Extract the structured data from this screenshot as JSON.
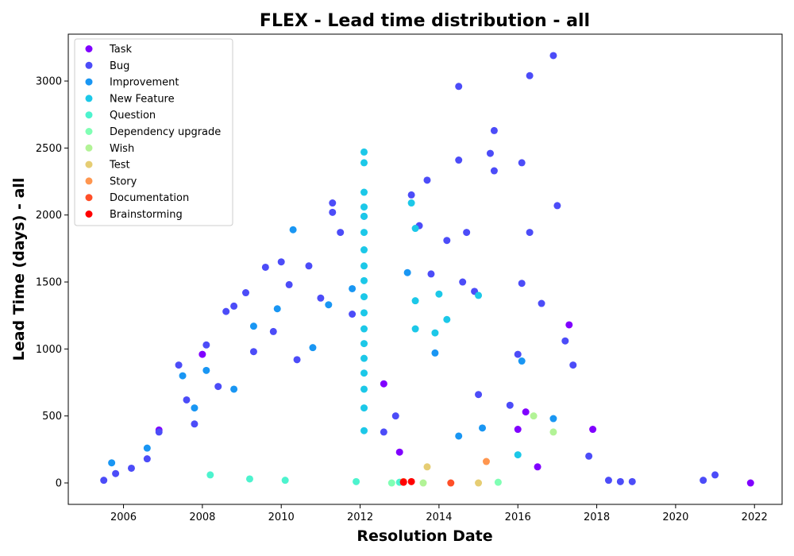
{
  "chart_data": {
    "type": "scatter",
    "title": "FLEX - Lead time distribution - all",
    "xlabel": "Resolution Date",
    "ylabel": "Lead Time (days) - all",
    "xlim": [
      2004.6,
      2022.7
    ],
    "ylim": [
      -160,
      3350
    ],
    "x_ticks": [
      2006,
      2008,
      2010,
      2012,
      2014,
      2016,
      2018,
      2020,
      2022
    ],
    "y_ticks": [
      0,
      500,
      1000,
      1500,
      2000,
      2500,
      3000
    ],
    "legend_position": "upper-left",
    "grid": false,
    "series": [
      {
        "name": "Task",
        "color": "#8000ff",
        "points": [
          [
            2006.9,
            395
          ],
          [
            2008.0,
            960
          ],
          [
            2012.6,
            740
          ],
          [
            2013.0,
            230
          ],
          [
            2016.0,
            400
          ],
          [
            2016.2,
            530
          ],
          [
            2016.5,
            120
          ],
          [
            2017.3,
            1180
          ],
          [
            2017.9,
            400
          ],
          [
            2021.9,
            0
          ]
        ]
      },
      {
        "name": "Bug",
        "color": "#4c4cf8",
        "points": [
          [
            2005.5,
            20
          ],
          [
            2005.8,
            70
          ],
          [
            2006.2,
            110
          ],
          [
            2006.6,
            180
          ],
          [
            2006.9,
            380
          ],
          [
            2007.4,
            880
          ],
          [
            2007.6,
            620
          ],
          [
            2007.8,
            440
          ],
          [
            2008.1,
            1030
          ],
          [
            2008.4,
            720
          ],
          [
            2008.6,
            1280
          ],
          [
            2008.8,
            1320
          ],
          [
            2009.1,
            1420
          ],
          [
            2009.3,
            980
          ],
          [
            2009.6,
            1610
          ],
          [
            2009.8,
            1130
          ],
          [
            2010.0,
            1650
          ],
          [
            2010.2,
            1480
          ],
          [
            2010.4,
            920
          ],
          [
            2010.7,
            1620
          ],
          [
            2011.0,
            1380
          ],
          [
            2011.3,
            2090
          ],
          [
            2011.3,
            2020
          ],
          [
            2011.5,
            1870
          ],
          [
            2011.8,
            1260
          ],
          [
            2012.1,
            1990
          ],
          [
            2012.6,
            380
          ],
          [
            2012.9,
            500
          ],
          [
            2013.3,
            2150
          ],
          [
            2013.5,
            1920
          ],
          [
            2013.7,
            2260
          ],
          [
            2013.8,
            1560
          ],
          [
            2014.2,
            1810
          ],
          [
            2014.5,
            2960
          ],
          [
            2014.5,
            2410
          ],
          [
            2014.6,
            1500
          ],
          [
            2014.7,
            1870
          ],
          [
            2014.9,
            1430
          ],
          [
            2015.0,
            660
          ],
          [
            2015.3,
            2460
          ],
          [
            2015.4,
            2630
          ],
          [
            2015.4,
            2330
          ],
          [
            2015.8,
            580
          ],
          [
            2016.0,
            960
          ],
          [
            2016.1,
            2390
          ],
          [
            2016.1,
            1490
          ],
          [
            2016.3,
            3040
          ],
          [
            2016.3,
            1870
          ],
          [
            2016.6,
            1340
          ],
          [
            2016.9,
            3190
          ],
          [
            2017.0,
            2070
          ],
          [
            2017.2,
            1060
          ],
          [
            2017.4,
            880
          ],
          [
            2017.8,
            200
          ],
          [
            2018.3,
            20
          ],
          [
            2018.6,
            10
          ],
          [
            2018.9,
            10
          ],
          [
            2020.7,
            20
          ],
          [
            2021.0,
            60
          ]
        ]
      },
      {
        "name": "Improvement",
        "color": "#1996f3",
        "points": [
          [
            2005.7,
            150
          ],
          [
            2006.6,
            260
          ],
          [
            2007.5,
            800
          ],
          [
            2007.8,
            560
          ],
          [
            2008.1,
            840
          ],
          [
            2008.8,
            700
          ],
          [
            2009.3,
            1170
          ],
          [
            2009.9,
            1300
          ],
          [
            2010.3,
            1890
          ],
          [
            2010.8,
            1010
          ],
          [
            2011.2,
            1330
          ],
          [
            2011.8,
            1450
          ],
          [
            2013.2,
            1570
          ],
          [
            2013.9,
            970
          ],
          [
            2014.5,
            350
          ],
          [
            2015.1,
            410
          ],
          [
            2016.1,
            910
          ],
          [
            2016.9,
            480
          ]
        ]
      },
      {
        "name": "New Feature",
        "color": "#1cc8e8",
        "points": [
          [
            2012.1,
            2470
          ],
          [
            2012.1,
            2390
          ],
          [
            2012.1,
            2170
          ],
          [
            2012.1,
            2060
          ],
          [
            2012.1,
            1990
          ],
          [
            2012.1,
            1870
          ],
          [
            2012.1,
            1740
          ],
          [
            2012.1,
            1620
          ],
          [
            2012.1,
            1510
          ],
          [
            2012.1,
            1390
          ],
          [
            2012.1,
            1270
          ],
          [
            2012.1,
            1150
          ],
          [
            2012.1,
            1040
          ],
          [
            2012.1,
            930
          ],
          [
            2012.1,
            820
          ],
          [
            2012.1,
            700
          ],
          [
            2012.1,
            560
          ],
          [
            2012.1,
            390
          ],
          [
            2013.3,
            2090
          ],
          [
            2013.4,
            1900
          ],
          [
            2013.4,
            1360
          ],
          [
            2013.4,
            1150
          ],
          [
            2014.0,
            1410
          ],
          [
            2014.2,
            1220
          ],
          [
            2013.9,
            1120
          ],
          [
            2015.0,
            1400
          ],
          [
            2016.0,
            210
          ]
        ]
      },
      {
        "name": "Question",
        "color": "#4df3ce",
        "points": [
          [
            2008.2,
            60
          ],
          [
            2009.2,
            30
          ],
          [
            2010.1,
            20
          ],
          [
            2011.9,
            10
          ],
          [
            2013.0,
            5
          ]
        ]
      },
      {
        "name": "Dependency upgrade",
        "color": "#80ffb4",
        "points": [
          [
            2012.8,
            0
          ],
          [
            2015.5,
            5
          ]
        ]
      },
      {
        "name": "Wish",
        "color": "#b2f396",
        "points": [
          [
            2013.6,
            0
          ],
          [
            2016.4,
            500
          ],
          [
            2016.9,
            380
          ]
        ]
      },
      {
        "name": "Test",
        "color": "#e6cd73",
        "points": [
          [
            2013.7,
            120
          ],
          [
            2015.0,
            0
          ]
        ]
      },
      {
        "name": "Story",
        "color": "#ff964f",
        "points": [
          [
            2015.2,
            160
          ]
        ]
      },
      {
        "name": "Documentation",
        "color": "#ff4f28",
        "points": [
          [
            2013.1,
            10
          ],
          [
            2014.3,
            0
          ]
        ]
      },
      {
        "name": "Brainstorming",
        "color": "#ff0000",
        "points": [
          [
            2013.1,
            5
          ],
          [
            2013.3,
            10
          ]
        ]
      }
    ]
  }
}
